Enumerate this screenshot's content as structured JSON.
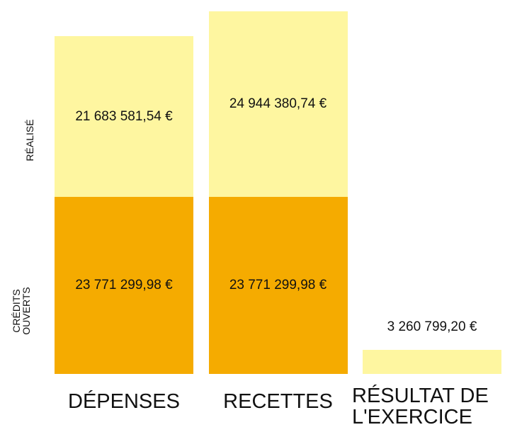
{
  "chart_data": {
    "type": "stacked-bar",
    "categories": [
      "DÉPENSES",
      "RECETTES",
      "RÉSULTAT DE L'EXERCICE"
    ],
    "series": [
      {
        "name": "CRÉDITS OUVERTS",
        "color": "#f5ab00",
        "values": [
          23771299.98,
          23771299.98,
          null
        ],
        "value_labels": [
          "23 771 299,98 €",
          "23 771 299,98 €",
          null
        ]
      },
      {
        "name": "RÉALISÉ",
        "color": "#fef6a0",
        "values": [
          21683581.54,
          24944380.74,
          3260799.2
        ],
        "value_labels": [
          "21 683 581,54 €",
          "24 944 380,74 €",
          "3 260 799,20 €"
        ]
      }
    ],
    "ylim": [
      0,
      50000000
    ]
  }
}
